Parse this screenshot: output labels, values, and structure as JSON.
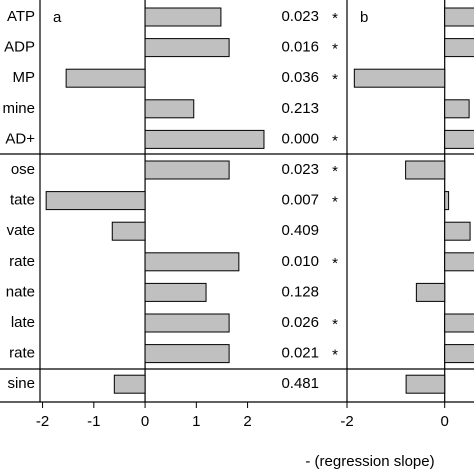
{
  "chart_data": [
    {
      "type": "bar",
      "orientation": "horizontal",
      "panel_label": "a",
      "categories": [
        "ATP",
        "ADP",
        "MP",
        "mine",
        "AD+",
        "ose",
        "tate",
        "vate",
        "rate",
        "nate",
        "late",
        "rate",
        "sine"
      ],
      "values": [
        1.48,
        1.64,
        -1.54,
        0.95,
        2.32,
        1.64,
        -1.93,
        -0.64,
        1.83,
        1.19,
        1.64,
        1.64,
        -0.6
      ],
      "p_values": [
        "0.023",
        "0.016",
        "0.036",
        "0.213",
        "0.000",
        "0.023",
        "0.007",
        "0.409",
        "0.010",
        "0.128",
        "0.026",
        "0.021",
        "0.481"
      ],
      "significance": [
        "*",
        "*",
        "*",
        null,
        "*",
        "*",
        "*",
        null,
        "*",
        null,
        "*",
        "*",
        null
      ],
      "color": "#c0c0c0",
      "xlim": [
        -2.05,
        3.94
      ],
      "xticks": [
        -2,
        -1,
        0,
        1,
        2
      ]
    },
    {
      "type": "bar",
      "orientation": "horizontal",
      "panel_label": "b",
      "values": [
        0.7,
        0.7,
        -1.85,
        0.5,
        0.7,
        -0.8,
        0.08,
        0.52,
        0.7,
        -0.58,
        0.7,
        0.7,
        -0.79
      ],
      "color": "#c0c0c0",
      "xlim": [
        -2,
        0.6
      ],
      "xticks": [
        -2,
        0
      ],
      "xlabel": "- (regression slope)"
    }
  ]
}
